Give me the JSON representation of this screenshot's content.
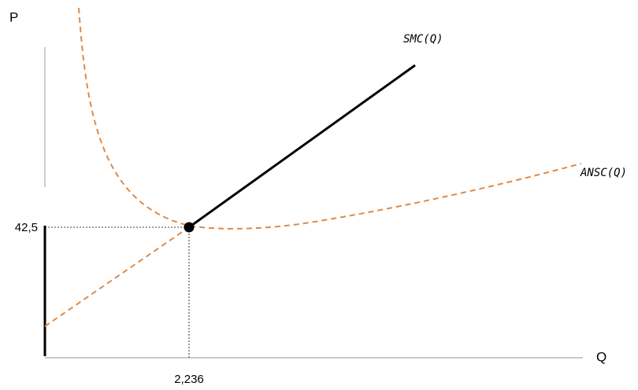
{
  "axes": {
    "y_label": "P",
    "x_label": "Q"
  },
  "ticks": {
    "price": "42,5",
    "quantity": "2,236"
  },
  "curves": {
    "smc": "SMC(Q)",
    "ansc": "ANSC(Q)"
  }
}
